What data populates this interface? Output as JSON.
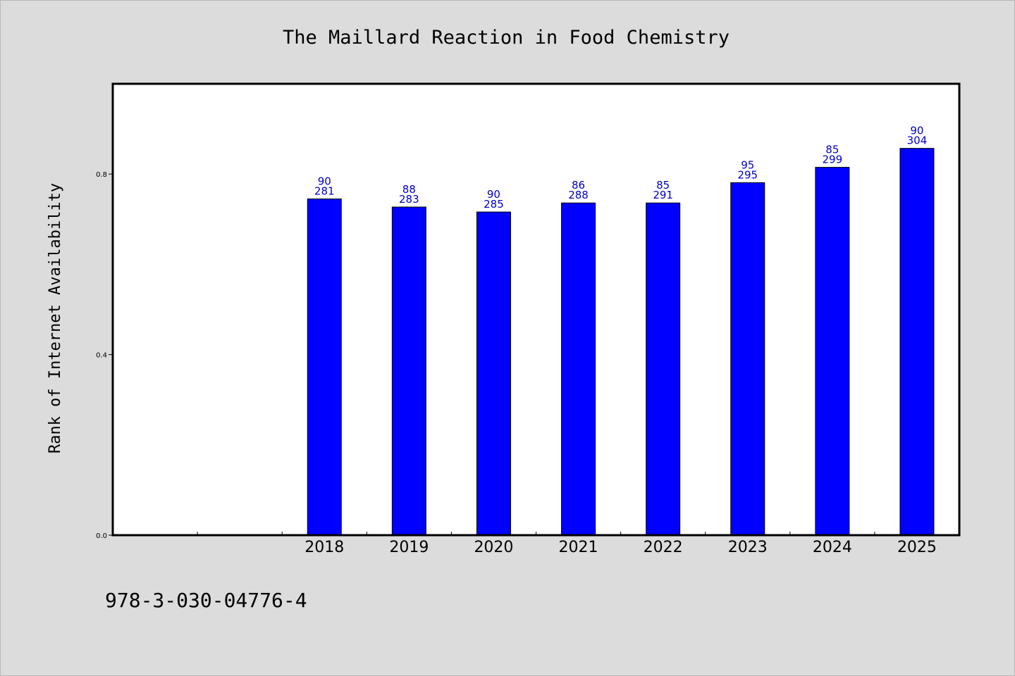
{
  "chart_data": {
    "type": "bar",
    "title": "The Maillard Reaction in Food Chemistry",
    "xlabel": "",
    "ylabel": "Rank of Internet Availability",
    "categories": [
      "",
      "",
      "2018",
      "2019",
      "2020",
      "2021",
      "2022",
      "2023",
      "2024",
      "2025"
    ],
    "values": [
      null,
      null,
      0.745,
      0.727,
      0.716,
      0.736,
      0.736,
      0.781,
      0.815,
      0.857
    ],
    "data_labels": [
      null,
      null,
      {
        "top": "90",
        "bottom": "281"
      },
      {
        "top": "88",
        "bottom": "283"
      },
      {
        "top": "90",
        "bottom": "285"
      },
      {
        "top": "86",
        "bottom": "288"
      },
      {
        "top": "85",
        "bottom": "291"
      },
      {
        "top": "95",
        "bottom": "295"
      },
      {
        "top": "85",
        "bottom": "299"
      },
      {
        "top": "90",
        "bottom": "304"
      }
    ],
    "ylim": [
      0,
      1.0
    ],
    "yticks": [
      0.0,
      0.4,
      0.8
    ],
    "ytick_labels": [
      "0.0",
      "0.4",
      "0.8"
    ],
    "grid": false,
    "bar_color": "#0000ff",
    "label_color": "#0000c8"
  },
  "footer": {
    "code": "978-3-030-04776-4"
  }
}
